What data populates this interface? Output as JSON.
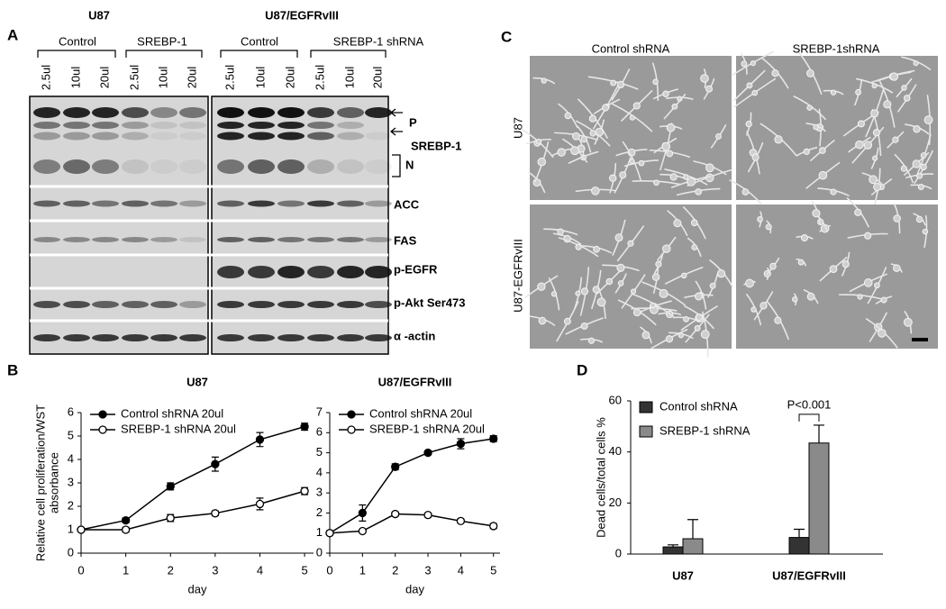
{
  "panel_labels": [
    "A",
    "B",
    "C",
    "D"
  ],
  "blot": {
    "cell_lines": [
      "U87",
      "U87/EGFRvIII"
    ],
    "groups": [
      "Control",
      "SREBP-1",
      "Control",
      "SREBP-1 shRNA"
    ],
    "lanes": [
      "2.5ul",
      "10ul",
      "20ul",
      "2.5ul",
      "10ul",
      "20ul",
      "2.5ul",
      "10ul",
      "20ul",
      "2.5ul",
      "10ul",
      "20ul"
    ],
    "bands": [
      "P",
      "SREBP-1",
      "N",
      "ACC",
      "FAS",
      "p-EGFR",
      "p-Akt Ser473",
      "α -actin"
    ]
  },
  "micrographs": {
    "columns": [
      "Control shRNA",
      "SREBP-1shRNA"
    ],
    "rows": [
      "U87",
      "U87-EGFRvIII"
    ]
  },
  "chart_data": [
    {
      "type": "line",
      "title": "U87",
      "xlabel": "day",
      "ylabel": [
        "Relative cell proliferation/WST",
        "absorbance"
      ],
      "x": [
        0,
        1,
        2,
        3,
        4,
        5
      ],
      "xlim": [
        0,
        5.2
      ],
      "xticks": [
        0,
        1,
        2,
        3,
        4,
        5
      ],
      "ylim": [
        0,
        6
      ],
      "yticks": [
        0,
        1,
        2,
        3,
        4,
        5,
        6
      ],
      "legend": "top-left",
      "series": [
        {
          "name": "Control shRNA 20ul",
          "color": "#000000",
          "marker_fill": "#000000",
          "values": [
            1,
            1.4,
            2.85,
            3.8,
            4.85,
            5.4
          ],
          "errors": [
            0.05,
            0.1,
            0.15,
            0.3,
            0.3,
            0.15
          ]
        },
        {
          "name": "SREBP-1 shRNA 20ul",
          "color": "#000000",
          "marker_fill": "#ffffff",
          "values": [
            1,
            1.0,
            1.5,
            1.7,
            2.1,
            2.65
          ],
          "errors": [
            0.05,
            0.1,
            0.15,
            0.1,
            0.25,
            0.15
          ]
        }
      ]
    },
    {
      "type": "line",
      "title": "U87/EGFRvIII",
      "xlabel": "day",
      "x": [
        0,
        1,
        2,
        3,
        4,
        5
      ],
      "xlim": [
        0,
        5.2
      ],
      "xticks": [
        0,
        1,
        2,
        3,
        4,
        5
      ],
      "ylim": [
        0,
        7
      ],
      "yticks": [
        0,
        1,
        2,
        3,
        4,
        5,
        6,
        7
      ],
      "legend": "top-left",
      "series": [
        {
          "name": "Control shRNA 20ul",
          "color": "#000000",
          "marker_fill": "#000000",
          "values": [
            1,
            2.0,
            4.3,
            5.0,
            5.45,
            5.7
          ],
          "errors": [
            0.05,
            0.4,
            0.15,
            0.1,
            0.25,
            0.15
          ]
        },
        {
          "name": "SREBP-1 shRNA 20ul",
          "color": "#000000",
          "marker_fill": "#ffffff",
          "values": [
            1,
            1.1,
            1.95,
            1.9,
            1.6,
            1.35
          ],
          "errors": [
            0.05,
            0.05,
            0.1,
            0.1,
            0.1,
            0.12
          ]
        }
      ]
    },
    {
      "type": "bar",
      "ylabel": "Dead cells/total cells %",
      "categories": [
        "U87",
        "U87/EGFRvIII"
      ],
      "ylim": [
        0,
        60
      ],
      "yticks": [
        0,
        20,
        40,
        60
      ],
      "legend": "top-left",
      "annotation": "P<0.001",
      "series": [
        {
          "name": "Control shRNA",
          "color": "#333333",
          "values": [
            2.8,
            6.5
          ],
          "errors": [
            0.8,
            3.2
          ]
        },
        {
          "name": "SREBP-1 shRNA",
          "color": "#8a8a8a",
          "values": [
            6,
            43.5
          ],
          "errors": [
            7.5,
            7
          ]
        }
      ]
    }
  ]
}
